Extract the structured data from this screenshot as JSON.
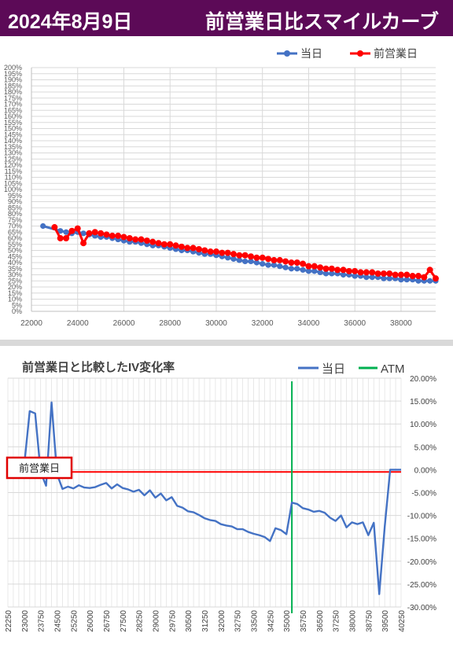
{
  "header": {
    "date": "2024年8月9日",
    "title": "前営業日比スマイルカーブ",
    "bg_color": "#5c0a57"
  },
  "chart_data": [
    {
      "type": "line",
      "xlim": [
        22000,
        39500
      ],
      "ylim": [
        0,
        200
      ],
      "x_ticks": [
        "22000",
        "24000",
        "26000",
        "28000",
        "30000",
        "32000",
        "34000",
        "36000",
        "38000"
      ],
      "y_ticks": [
        "0%",
        "5%",
        "10%",
        "15%",
        "20%",
        "25%",
        "30%",
        "35%",
        "40%",
        "45%",
        "50%",
        "55%",
        "60%",
        "65%",
        "70%",
        "75%",
        "80%",
        "85%",
        "90%",
        "95%",
        "100%",
        "105%",
        "110%",
        "115%",
        "120%",
        "125%",
        "130%",
        "135%",
        "140%",
        "145%",
        "150%",
        "155%",
        "160%",
        "165%",
        "170%",
        "175%",
        "180%",
        "185%",
        "190%",
        "195%",
        "200%"
      ],
      "grid": true,
      "legend": "top-right",
      "series": [
        {
          "name": "当日",
          "color": "#4472c4",
          "x": [
            22500,
            23250,
            23500,
            23750,
            24000,
            24250,
            24500,
            24750,
            25000,
            25250,
            25500,
            25750,
            26000,
            26250,
            26500,
            26750,
            27000,
            27250,
            27500,
            27750,
            28000,
            28250,
            28500,
            28750,
            29000,
            29250,
            29500,
            29750,
            30000,
            30250,
            30500,
            30750,
            31000,
            31250,
            31500,
            31750,
            32000,
            32250,
            32500,
            32750,
            33000,
            33250,
            33500,
            33750,
            34000,
            34250,
            34500,
            34750,
            35000,
            35250,
            35500,
            35750,
            36000,
            36250,
            36500,
            36750,
            37000,
            37250,
            37500,
            37750,
            38000,
            38250,
            38500,
            38750,
            39000,
            39250,
            39500
          ],
          "y": [
            70,
            66,
            65,
            64,
            65,
            64,
            63,
            62,
            61,
            61,
            60,
            59,
            58,
            57,
            57,
            56,
            55,
            54,
            54,
            53,
            52,
            51,
            50,
            50,
            49,
            48,
            47,
            47,
            46,
            45,
            44,
            43,
            42,
            41,
            41,
            40,
            39,
            38,
            38,
            37,
            36,
            35,
            35,
            34,
            33,
            33,
            32,
            31,
            31,
            31,
            30,
            30,
            29,
            29,
            28,
            28,
            28,
            27,
            27,
            27,
            26,
            26,
            26,
            25,
            25,
            25,
            25
          ]
        },
        {
          "name": "前営業日",
          "color": "#ff0000",
          "x": [
            23000,
            23250,
            23500,
            23750,
            24000,
            24250,
            24500,
            24750,
            25000,
            25250,
            25500,
            25750,
            26000,
            26250,
            26500,
            26750,
            27000,
            27250,
            27500,
            27750,
            28000,
            28250,
            28500,
            28750,
            29000,
            29250,
            29500,
            29750,
            30000,
            30250,
            30500,
            30750,
            31000,
            31250,
            31500,
            31750,
            32000,
            32250,
            32500,
            32750,
            33000,
            33250,
            33500,
            33750,
            34000,
            34250,
            34500,
            34750,
            35000,
            35250,
            35500,
            35750,
            36000,
            36250,
            36500,
            36750,
            37000,
            37250,
            37500,
            37750,
            38000,
            38250,
            38500,
            38750,
            39000,
            39250,
            39500
          ],
          "y": [
            69,
            60,
            60,
            66,
            68,
            56,
            64,
            65,
            64,
            63,
            62,
            62,
            61,
            60,
            59,
            59,
            58,
            57,
            56,
            55,
            55,
            54,
            53,
            52,
            52,
            51,
            50,
            49,
            49,
            48,
            48,
            47,
            46,
            46,
            45,
            44,
            44,
            43,
            42,
            42,
            41,
            40,
            40,
            39,
            37,
            37,
            36,
            35,
            35,
            34,
            34,
            33,
            33,
            32,
            32,
            32,
            31,
            31,
            31,
            30,
            30,
            30,
            29,
            29,
            28,
            34,
            27
          ]
        }
      ]
    },
    {
      "type": "line",
      "title": "前営業日と比較したIV変化率",
      "x_ticks": [
        "22250",
        "23000",
        "23750",
        "24500",
        "25250",
        "26000",
        "26750",
        "27500",
        "28250",
        "29000",
        "29750",
        "30500",
        "31250",
        "32000",
        "32750",
        "33500",
        "34250",
        "35000",
        "35750",
        "36500",
        "37250",
        "38000",
        "38750",
        "39500",
        "40250"
      ],
      "y_ticks": [
        "20.00%",
        "15.00%",
        "10.00%",
        "5.00%",
        "0.00%",
        "-5.00%",
        "-10.00%",
        "-15.00%",
        "-20.00%",
        "-25.00%",
        "-30.00%"
      ],
      "xlim": [
        22250,
        40250
      ],
      "ylim": [
        -30,
        20
      ],
      "grid": true,
      "legend": "top-right",
      "annotation": "前営業日",
      "atm_x": 35250,
      "series": [
        {
          "name": "当日",
          "color": "#4472c4",
          "x": [
            23000,
            23250,
            23500,
            23750,
            24000,
            24250,
            24500,
            24750,
            25000,
            25250,
            25500,
            25750,
            26000,
            26250,
            26500,
            26750,
            27000,
            27250,
            27500,
            27750,
            28000,
            28250,
            28500,
            28750,
            29000,
            29250,
            29500,
            29750,
            30000,
            30250,
            30500,
            30750,
            31000,
            31250,
            31500,
            31750,
            32000,
            32250,
            32500,
            32750,
            33000,
            33250,
            33500,
            33750,
            34000,
            34250,
            34500,
            34750,
            35000,
            35250,
            35500,
            35750,
            36000,
            36250,
            36500,
            36750,
            37000,
            37250,
            37500,
            37750,
            38000,
            38250,
            38500,
            38750,
            39000,
            39250,
            39500,
            39750,
            40000,
            40250
          ],
          "y": [
            1,
            12.8,
            12.3,
            -0.5,
            -3.5,
            14.7,
            -1,
            -4.2,
            -3.7,
            -4.1,
            -3.4,
            -3.9,
            -4,
            -3.8,
            -3.3,
            -2.9,
            -4.1,
            -3.2,
            -4,
            -4.3,
            -4.8,
            -4.4,
            -5.6,
            -4.5,
            -6.1,
            -5.2,
            -6.7,
            -6,
            -7.9,
            -8.3,
            -9.1,
            -9.3,
            -9.9,
            -10.6,
            -11,
            -11.2,
            -11.9,
            -12.2,
            -12.4,
            -13,
            -13,
            -13.6,
            -14,
            -14.3,
            -14.7,
            -15.6,
            -12.8,
            -13.2,
            -14.1,
            -7.2,
            -7.5,
            -8.4,
            -8.7,
            -9.2,
            -9,
            -9.4,
            -10.5,
            -11.2,
            -10,
            -12.6,
            -11.5,
            -11.9,
            -11.5,
            -14.3,
            -11.6,
            -27.2,
            -12.5,
            0,
            0,
            0
          ]
        },
        {
          "name": "ATM",
          "color": "#00b050"
        }
      ]
    }
  ]
}
